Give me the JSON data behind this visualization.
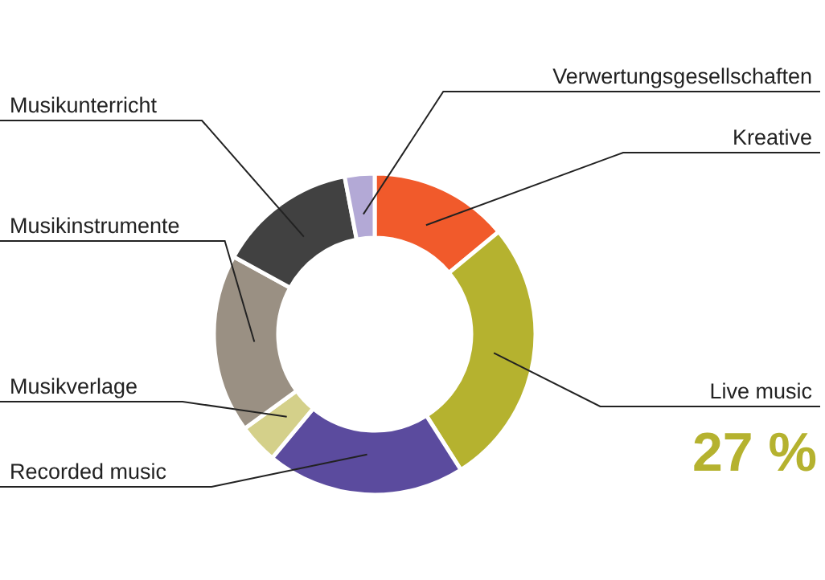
{
  "chart_data": {
    "type": "donut",
    "categories": [
      "Kreative",
      "Live music",
      "Recorded music",
      "Musikverlage",
      "Musikinstrumente",
      "Musikunterricht",
      "Verwertungsgesellschaften"
    ],
    "values": [
      14,
      27,
      20,
      4,
      18,
      14,
      3
    ],
    "colors": [
      "#f15a2b",
      "#b5b22f",
      "#5b4b9e",
      "#d4d08a",
      "#9a9083",
      "#414141",
      "#b3a9d6"
    ],
    "value_labels": [
      null,
      "27 %",
      null,
      null,
      null,
      null,
      null
    ]
  }
}
